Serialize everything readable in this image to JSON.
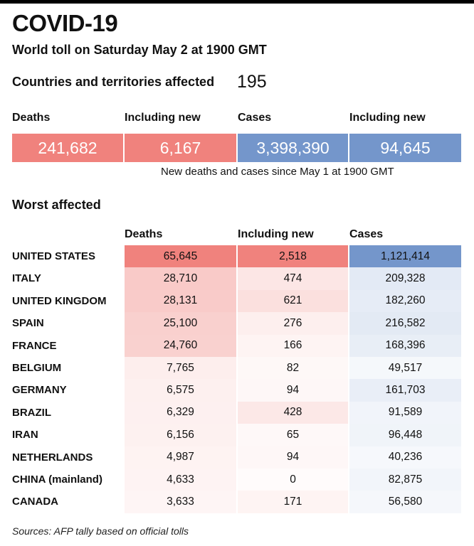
{
  "header": {
    "title": "COVID-19",
    "subtitle": "World toll on Saturday May 2 at 1900 GMT"
  },
  "countries": {
    "label": "Countries and territories affected",
    "value": "195"
  },
  "summary": {
    "headers": [
      "Deaths",
      "Including new",
      "Cases",
      "Including new"
    ],
    "values": [
      "241,682",
      "6,167",
      "3,398,390",
      "94,645"
    ],
    "note": "New deaths and cases since May 1 at 1900 GMT"
  },
  "colors": {
    "deaths": "#F0827D",
    "cases": "#7496CB"
  },
  "chart_data": {
    "type": "table",
    "title": "Worst affected",
    "columns": [
      "Deaths",
      "Including new",
      "Cases"
    ],
    "rows": [
      {
        "country": "UNITED STATES",
        "deaths": "65,645",
        "new": "2,518",
        "cases": "1,121,414"
      },
      {
        "country": "ITALY",
        "deaths": "28,710",
        "new": "474",
        "cases": "209,328"
      },
      {
        "country": "UNITED KINGDOM",
        "deaths": "28,131",
        "new": "621",
        "cases": "182,260"
      },
      {
        "country": "SPAIN",
        "deaths": "25,100",
        "new": "276",
        "cases": "216,582"
      },
      {
        "country": "FRANCE",
        "deaths": "24,760",
        "new": "166",
        "cases": "168,396"
      },
      {
        "country": "BELGIUM",
        "deaths": "7,765",
        "new": "82",
        "cases": "49,517"
      },
      {
        "country": "GERMANY",
        "deaths": "6,575",
        "new": "94",
        "cases": "161,703"
      },
      {
        "country": "BRAZIL",
        "deaths": "6,329",
        "new": "428",
        "cases": "91,589"
      },
      {
        "country": "IRAN",
        "deaths": "6,156",
        "new": "65",
        "cases": "96,448"
      },
      {
        "country": "NETHERLANDS",
        "deaths": "4,987",
        "new": "94",
        "cases": "40,236"
      },
      {
        "country": "CHINA (mainland)",
        "deaths": "4,633",
        "new": "0",
        "cases": "82,875"
      },
      {
        "country": "CANADA",
        "deaths": "3,633",
        "new": "171",
        "cases": "56,580"
      }
    ]
  },
  "footer": {
    "source": "Sources: AFP tally based on official tolls"
  }
}
